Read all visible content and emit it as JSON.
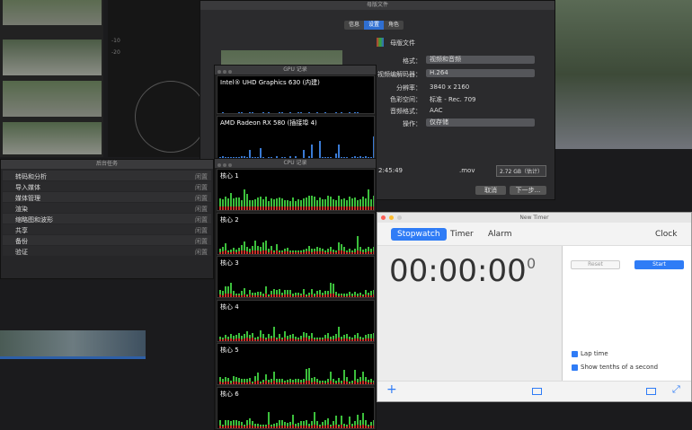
{
  "scope": {
    "labels": [
      "-10",
      "-20"
    ]
  },
  "dialog": {
    "title": "母版文件",
    "tabs": [
      "信息",
      "设置",
      "角色"
    ],
    "name": "母版文件",
    "fields": [
      {
        "label": "格式：",
        "value": "视频和音频"
      },
      {
        "label": "视频编解码器：",
        "value": "H.264"
      },
      {
        "label": "分辨率：",
        "value": "3840 x 2160"
      },
      {
        "label": "色彩空间：",
        "value": "标准 - Rec. 709"
      },
      {
        "label": "音频格式：",
        "value": "AAC"
      },
      {
        "label": "操作：",
        "value": "仅存储"
      }
    ],
    "duration": "2:45:49",
    "extension": ".mov",
    "size": "2.72 GB（估计）",
    "buttons": [
      "取消",
      "下一步..."
    ]
  },
  "background_tasks": {
    "title": "后台任务",
    "rows": [
      {
        "name": "转码和分析",
        "status": "闲置"
      },
      {
        "name": "导入媒体",
        "status": "闲置"
      },
      {
        "name": "媒体管理",
        "status": "闲置"
      },
      {
        "name": "渲染",
        "status": "闲置"
      },
      {
        "name": "缩略图和波形",
        "status": "闲置"
      },
      {
        "name": "共享",
        "status": "闲置"
      },
      {
        "name": "备份",
        "status": "闲置"
      },
      {
        "name": "验证",
        "status": "闲置"
      }
    ]
  },
  "gpu_history": {
    "title": "GPU 记录",
    "gpus": [
      "Intel® UHD Graphics 630 (内建)",
      "AMD Radeon RX 580 (插接埠 4)"
    ]
  },
  "cpu_history": {
    "title": "CPU 记录",
    "cores": [
      "核心 1",
      "核心 2",
      "核心 3",
      "核心 4",
      "核心 5",
      "核心 6"
    ]
  },
  "timer": {
    "title": "New Timer",
    "tabs": [
      "Stopwatch",
      "Timer",
      "Alarm"
    ],
    "clock_tab": "Clock",
    "time": "00:00:00",
    "tenths": "0",
    "buttons": [
      "Reset",
      "Start"
    ],
    "options": [
      "Lap time",
      "Show tenths of a second"
    ]
  }
}
